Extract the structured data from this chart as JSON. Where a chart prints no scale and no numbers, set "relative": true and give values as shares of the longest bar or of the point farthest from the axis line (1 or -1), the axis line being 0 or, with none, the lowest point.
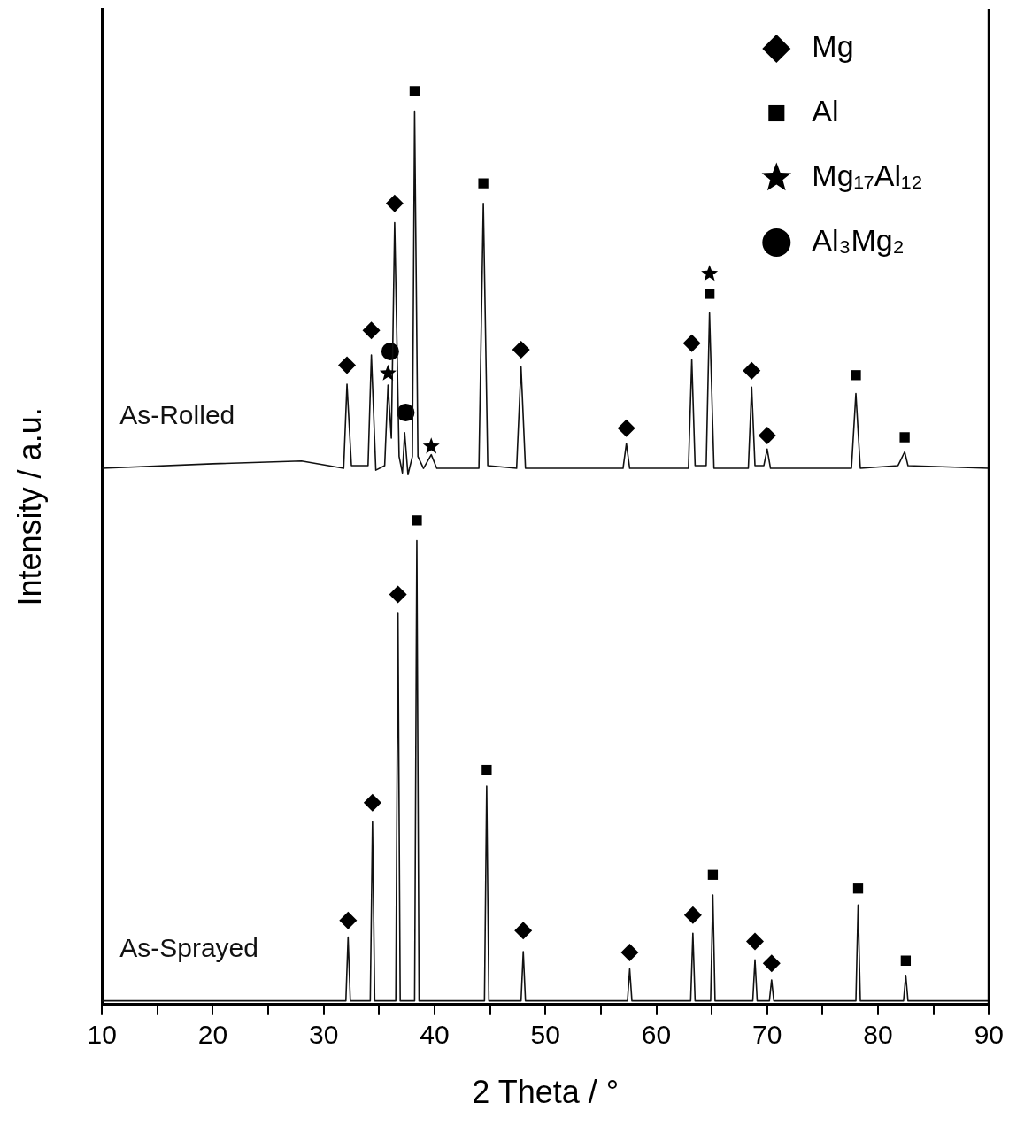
{
  "chart_data": {
    "type": "line",
    "relative": true,
    "xlabel": "2 Theta / °",
    "ylabel": "Intensity / a.u.",
    "xlim": [
      10,
      90
    ],
    "xticks": [
      10,
      {
        "value": 15,
        "label": null
      },
      20,
      {
        "value": 25,
        "label": null
      },
      30,
      {
        "value": 35,
        "label": null
      },
      40,
      {
        "value": 45,
        "label": null
      },
      50,
      {
        "value": 55,
        "label": null
      },
      60,
      {
        "value": 65,
        "label": null
      },
      70,
      {
        "value": 75,
        "label": null
      },
      80,
      {
        "value": 85,
        "label": null
      },
      90
    ],
    "legend": "top right",
    "series": [
      {
        "name": "As-Rolled",
        "type": "line",
        "marker": "none",
        "color": "#111111",
        "x": [
          10,
          20,
          28,
          31.8,
          32.1,
          32.5,
          34.0,
          34.3,
          34.7,
          35.5,
          35.8,
          36.1,
          36.4,
          36.8,
          37.1,
          37.3,
          37.6,
          38.0,
          38.2,
          38.5,
          39.0,
          39.7,
          40.2,
          44.0,
          44.4,
          44.8,
          47.4,
          47.8,
          48.2,
          57.0,
          57.3,
          57.6,
          62.9,
          63.2,
          63.5,
          64.5,
          64.8,
          65.2,
          68.3,
          68.6,
          68.9,
          69.7,
          70.0,
          70.3,
          77.6,
          78.0,
          78.4,
          81.8,
          82.4,
          82.7,
          90
        ],
        "values": [
          0.587,
          0.592,
          0.595,
          0.587,
          0.679,
          0.59,
          0.59,
          0.711,
          0.585,
          0.59,
          0.678,
          0.62,
          0.856,
          0.6,
          0.582,
          0.626,
          0.58,
          0.6,
          0.978,
          0.6,
          0.587,
          0.602,
          0.587,
          0.587,
          0.877,
          0.59,
          0.587,
          0.698,
          0.587,
          0.587,
          0.614,
          0.587,
          0.587,
          0.706,
          0.59,
          0.59,
          0.757,
          0.587,
          0.587,
          0.676,
          0.59,
          0.59,
          0.608,
          0.587,
          0.587,
          0.669,
          0.587,
          0.59,
          0.605,
          0.59,
          0.587
        ]
      },
      {
        "name": "As-Sprayed",
        "type": "line",
        "marker": "none",
        "color": "#111111",
        "x": [
          10,
          32.0,
          32.2,
          32.4,
          34.2,
          34.4,
          34.6,
          36.5,
          36.7,
          36.9,
          38.2,
          38.4,
          38.6,
          44.5,
          44.7,
          44.9,
          47.8,
          48.0,
          48.2,
          57.4,
          57.6,
          57.8,
          63.1,
          63.3,
          63.5,
          64.9,
          65.1,
          65.3,
          68.7,
          68.9,
          69.1,
          70.2,
          70.4,
          70.6,
          78.0,
          78.2,
          78.4,
          82.3,
          82.5,
          82.7,
          90
        ],
        "values": [
          0.004,
          0.004,
          0.074,
          0.004,
          0.004,
          0.2,
          0.004,
          0.004,
          0.429,
          0.004,
          0.004,
          0.508,
          0.004,
          0.004,
          0.239,
          0.004,
          0.004,
          0.058,
          0.004,
          0.004,
          0.039,
          0.004,
          0.004,
          0.078,
          0.004,
          0.004,
          0.12,
          0.004,
          0.004,
          0.049,
          0.004,
          0.004,
          0.027,
          0.004,
          0.004,
          0.109,
          0.004,
          0.004,
          0.032,
          0.004,
          0.004
        ]
      },
      {
        "name": "Mg",
        "type": "scatter",
        "marker": "diamond",
        "color": "#000000",
        "x": [
          32.1,
          34.3,
          36.4,
          47.8,
          57.3,
          63.2,
          68.6,
          70.0,
          32.2,
          34.4,
          36.7,
          48.0,
          57.6,
          63.3,
          68.9,
          70.4
        ],
        "values": [
          0.7,
          0.738,
          0.877,
          0.717,
          0.631,
          0.724,
          0.694,
          0.623,
          0.092,
          0.221,
          0.449,
          0.081,
          0.057,
          0.098,
          0.069,
          0.045
        ]
      },
      {
        "name": "Al",
        "type": "scatter",
        "marker": "square",
        "color": "#000000",
        "x": [
          38.2,
          44.4,
          64.8,
          78.0,
          82.4,
          38.4,
          44.7,
          65.1,
          78.2,
          82.5
        ],
        "values": [
          1.0,
          0.899,
          0.778,
          0.689,
          0.621,
          0.53,
          0.257,
          0.142,
          0.127,
          0.048
        ]
      },
      {
        "name": "Mg₁₇Al₁₂",
        "type": "scatter",
        "marker": "star",
        "color": "#000000",
        "x": [
          35.8,
          39.7,
          64.8
        ],
        "values": [
          0.691,
          0.611,
          0.8
        ]
      },
      {
        "name": "Al₃Mg₂",
        "type": "scatter",
        "marker": "circle",
        "color": "#000000",
        "x": [
          36.0,
          37.4
        ],
        "values": [
          0.715,
          0.648
        ]
      }
    ]
  }
}
